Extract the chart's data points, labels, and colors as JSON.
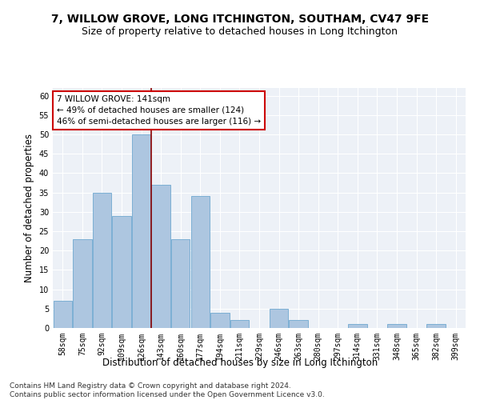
{
  "title": "7, WILLOW GROVE, LONG ITCHINGTON, SOUTHAM, CV47 9FE",
  "subtitle": "Size of property relative to detached houses in Long Itchington",
  "xlabel": "Distribution of detached houses by size in Long Itchington",
  "ylabel": "Number of detached properties",
  "bins": [
    "58sqm",
    "75sqm",
    "92sqm",
    "109sqm",
    "126sqm",
    "143sqm",
    "160sqm",
    "177sqm",
    "194sqm",
    "211sqm",
    "229sqm",
    "246sqm",
    "263sqm",
    "280sqm",
    "297sqm",
    "314sqm",
    "331sqm",
    "348sqm",
    "365sqm",
    "382sqm",
    "399sqm"
  ],
  "values": [
    7,
    23,
    35,
    29,
    50,
    37,
    23,
    34,
    4,
    2,
    0,
    5,
    2,
    0,
    0,
    1,
    0,
    1,
    0,
    1,
    0
  ],
  "bar_color": "#adc6e0",
  "bar_edge_color": "#6fa8d0",
  "vline_color": "#8b0000",
  "vline_x_index": 5,
  "annotation_text": "7 WILLOW GROVE: 141sqm\n← 49% of detached houses are smaller (124)\n46% of semi-detached houses are larger (116) →",
  "annotation_box_color": "white",
  "annotation_box_edge": "#cc0000",
  "ylim": [
    0,
    62
  ],
  "yticks": [
    0,
    5,
    10,
    15,
    20,
    25,
    30,
    35,
    40,
    45,
    50,
    55,
    60
  ],
  "footer": "Contains HM Land Registry data © Crown copyright and database right 2024.\nContains public sector information licensed under the Open Government Licence v3.0.",
  "background_color": "#edf1f7",
  "title_fontsize": 10,
  "subtitle_fontsize": 9,
  "xlabel_fontsize": 8.5,
  "ylabel_fontsize": 8.5,
  "tick_fontsize": 7,
  "footer_fontsize": 6.5,
  "annotation_fontsize": 7.5
}
